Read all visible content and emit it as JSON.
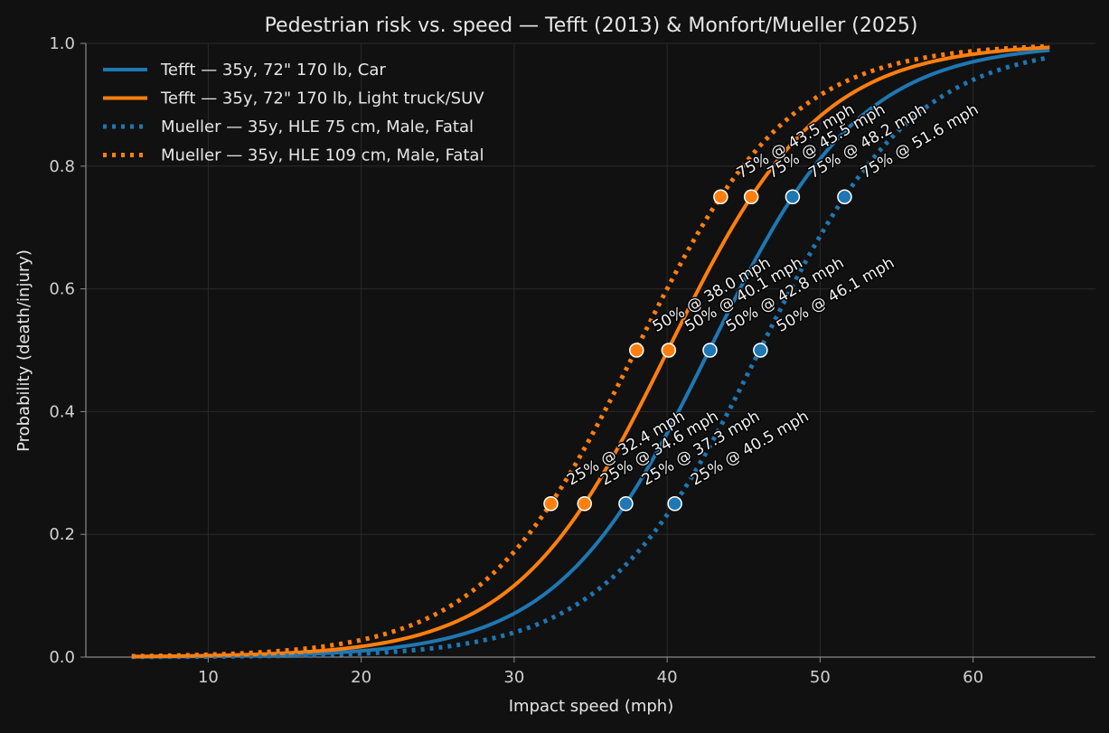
{
  "chart_data": {
    "type": "line",
    "title": "Pedestrian risk vs. speed — Tefft (2013) & Monfort/Mueller (2025)",
    "xlabel": "Impact speed (mph)",
    "ylabel": "Probability (death/injury)",
    "xlim": [
      2.0,
      68.0
    ],
    "ylim": [
      0.0,
      1.0
    ],
    "xticks": [
      10,
      20,
      30,
      40,
      50,
      60
    ],
    "yticks": [
      0.0,
      0.2,
      0.4,
      0.6,
      0.8,
      1.0
    ],
    "grid": true,
    "legend_position": "top-left",
    "x_range": [
      5,
      65
    ],
    "series": [
      {
        "name": "Tefft — 35y, 72\" 170 lb, Car",
        "color": "#1f77b4",
        "style": "solid",
        "thresholds": [
          {
            "p": 0.25,
            "x": 37.3,
            "label": "25% @ 37.3 mph"
          },
          {
            "p": 0.5,
            "x": 42.8,
            "label": "50% @ 42.8 mph"
          },
          {
            "p": 0.75,
            "x": 48.2,
            "label": "75% @ 48.2 mph"
          }
        ]
      },
      {
        "name": "Tefft — 35y, 72\" 170 lb, Light truck/SUV",
        "color": "#ff7f0e",
        "style": "solid",
        "thresholds": [
          {
            "p": 0.25,
            "x": 34.6,
            "label": "25% @ 34.6 mph"
          },
          {
            "p": 0.5,
            "x": 40.1,
            "label": "50% @ 40.1 mph"
          },
          {
            "p": 0.75,
            "x": 45.5,
            "label": "75% @ 45.5 mph"
          }
        ]
      },
      {
        "name": "Mueller — 35y, HLE 75 cm, Male, Fatal",
        "color": "#1f77b4",
        "style": "dotted",
        "thresholds": [
          {
            "p": 0.25,
            "x": 40.5,
            "label": "25% @ 40.5 mph"
          },
          {
            "p": 0.5,
            "x": 46.1,
            "label": "50% @ 46.1 mph"
          },
          {
            "p": 0.75,
            "x": 51.6,
            "label": "75% @ 51.6 mph"
          }
        ]
      },
      {
        "name": "Mueller — 35y, HLE 109 cm, Male, Fatal",
        "color": "#ff7f0e",
        "style": "dotted",
        "thresholds": [
          {
            "p": 0.25,
            "x": 32.4,
            "label": "25% @ 32.4 mph"
          },
          {
            "p": 0.5,
            "x": 38.0,
            "label": "50% @ 38.0 mph"
          },
          {
            "p": 0.75,
            "x": 43.5,
            "label": "75% @ 43.5 mph"
          }
        ]
      }
    ]
  }
}
